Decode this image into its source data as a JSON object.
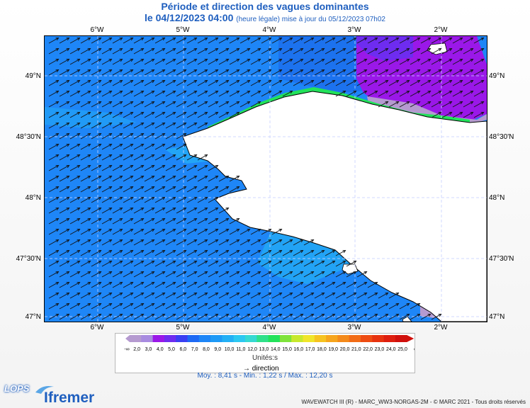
{
  "title": "Période et direction des vagues dominantes",
  "subtitle": {
    "datetime": "le 04/12/2023 04:00",
    "note": "(heure légale) mise à jour du 05/12/2023 07h02"
  },
  "map": {
    "lon_ticks": [
      "6°W",
      "5°W",
      "4°W",
      "3°W",
      "2°W"
    ],
    "lat_ticks": [
      "49°N",
      "48°30'N",
      "48°N",
      "47°30'N",
      "47°N"
    ],
    "lon_range": [
      -6.6,
      -1.5
    ],
    "lat_range": [
      47.0,
      49.3
    ],
    "colors": {
      "sea_main": "#1e86f7",
      "sea_light": "#23a8f5",
      "sea_dark": "#1455e6",
      "green_band": "#22e25a",
      "purple": "#9a18e8",
      "violet": "#b59ad0",
      "land": "#ffffff"
    }
  },
  "legend": {
    "low_label": "-∞",
    "high_label": "∞",
    "ticks": [
      "2,0",
      "3,0",
      "4,0",
      "5,0",
      "6,0",
      "7,0",
      "8,0",
      "9,0",
      "10,0",
      "11,0",
      "12,0",
      "13,0",
      "14,0",
      "15,0",
      "16,0",
      "17,0",
      "18,0",
      "19,0",
      "20,0",
      "21,0",
      "22,0",
      "23,0",
      "24,0",
      "25,0"
    ],
    "colors": [
      "#b59ad0",
      "#a88be0",
      "#9a18e8",
      "#6e2cf0",
      "#3a3ff3",
      "#1e6af5",
      "#1e86f7",
      "#1e9af6",
      "#23b0f5",
      "#2cc8f1",
      "#36d9d2",
      "#2fe08a",
      "#22e25a",
      "#7fe33a",
      "#c7e82c",
      "#f0e52a",
      "#f6c320",
      "#f6a51c",
      "#f48a1a",
      "#f26c16",
      "#ee4c12",
      "#e7320f",
      "#de1e0e",
      "#d0100c"
    ],
    "units": "Unités:s",
    "direction_label": "direction"
  },
  "stats": "Moy. : 8,41 s   -   Min. : 1,22 s / Max. : 12,20 s",
  "footer": "WAVEWATCH III (R) - MARC_WW3-NORGAS-2M - © MARC 2021 - Tous droits réservés",
  "logos": {
    "lops": "LOPS",
    "ifremer": "Ifremer"
  }
}
